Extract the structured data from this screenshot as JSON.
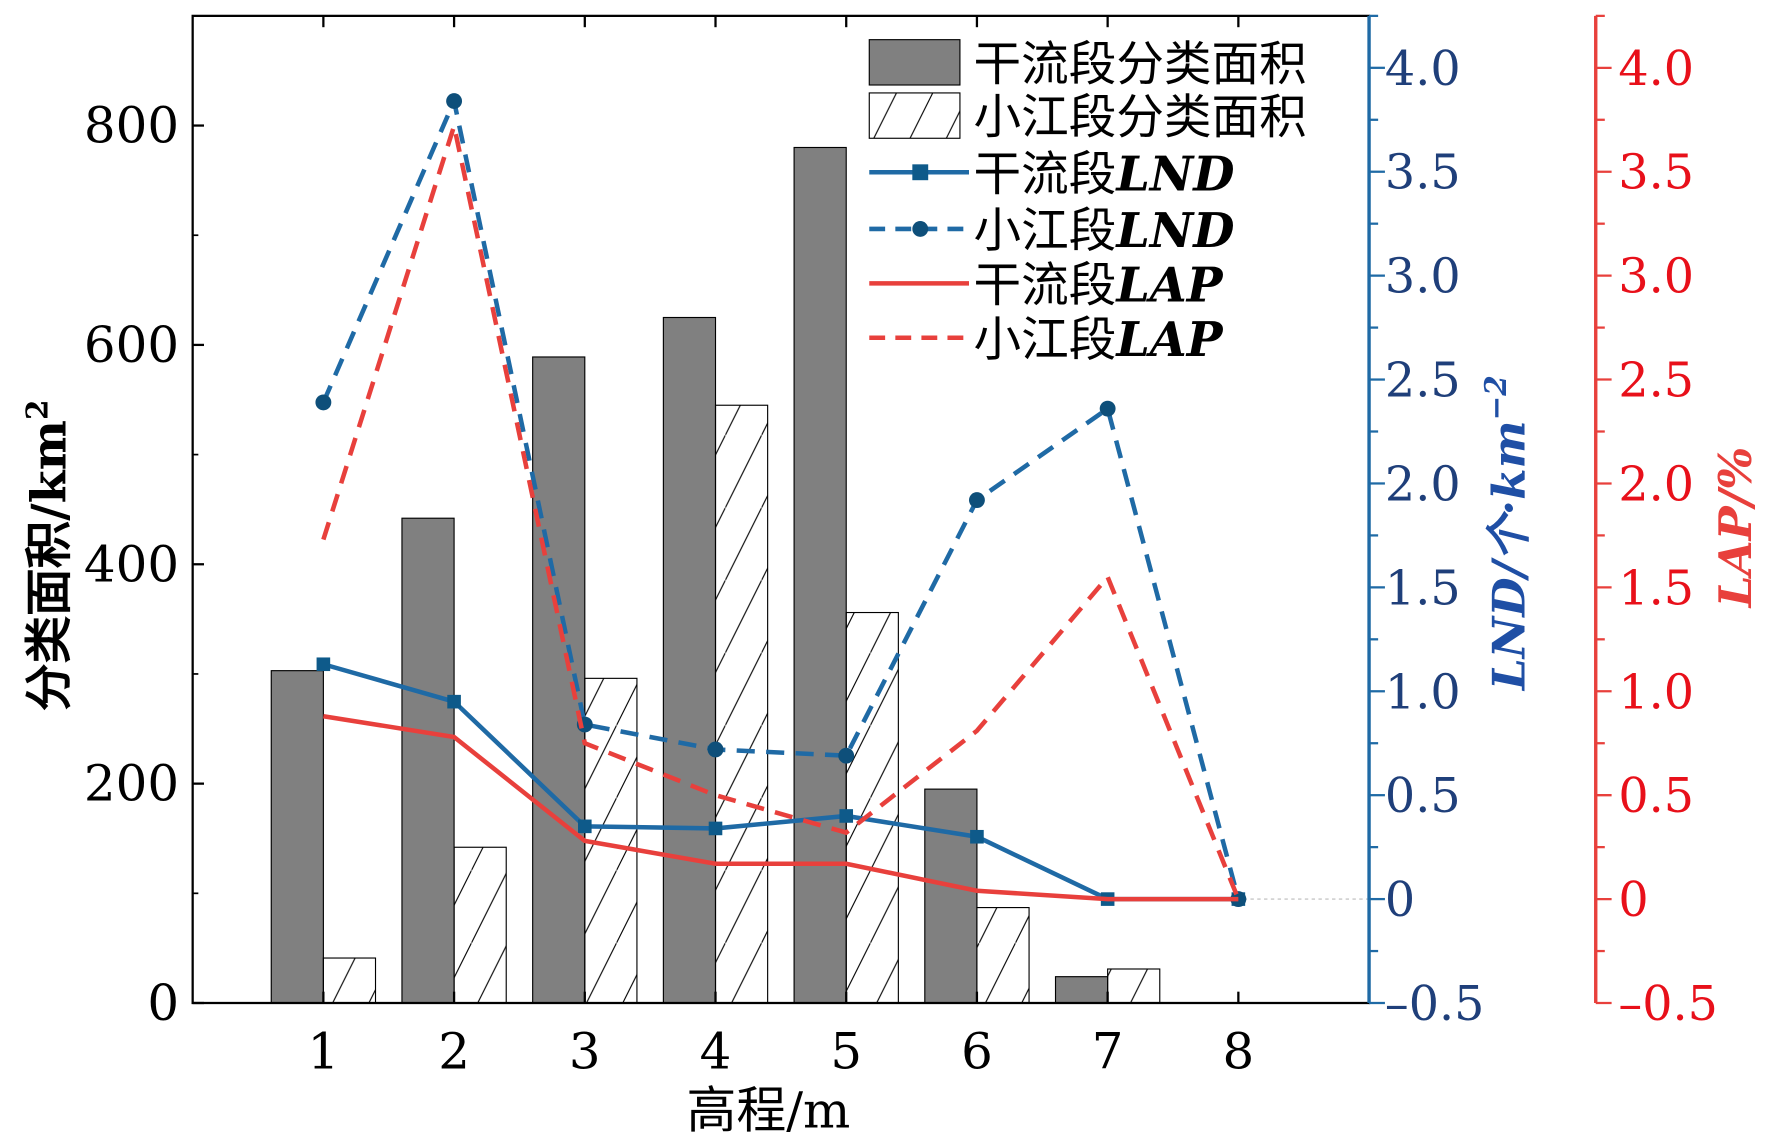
{
  "chart_data": {
    "type": "bar",
    "xlabel": "高程/m",
    "ylabel_left": "分类面积/km",
    "ylabel_left_sup": "2",
    "ylabel_right1": "LND/个·km",
    "ylabel_right1_sup": "−2",
    "ylabel_right2": "LAP/%",
    "categories": [
      "1",
      "2",
      "3",
      "4",
      "5",
      "6",
      "7",
      "8"
    ],
    "xlim": [
      0,
      9
    ],
    "ylim_left": [
      0,
      900
    ],
    "yticks_left": [
      "0",
      "200",
      "400",
      "600",
      "800"
    ],
    "ylim_right": [
      -0.5,
      4.25
    ],
    "yticks_right": [
      "-0.5",
      "0",
      "0.5",
      "1.0",
      "1.5",
      "2.0",
      "2.5",
      "3.0",
      "3.5",
      "4.0"
    ],
    "bar_series": [
      {
        "name": "干流段分类面积",
        "values": [
          303,
          442,
          589,
          625,
          780,
          195,
          24,
          0
        ],
        "color": "#808080"
      },
      {
        "name": "小江段分类面积",
        "values": [
          41,
          142,
          296,
          545,
          356,
          87,
          31,
          0
        ],
        "color": "#ffffff"
      }
    ],
    "line_series": [
      {
        "name": "干流段LND",
        "prefix": "干流段",
        "suffix": "LND",
        "values": [
          1.13,
          0.95,
          0.35,
          0.34,
          0.4,
          0.3,
          0,
          0
        ],
        "color": "#1f6aa5",
        "dashed": false,
        "marker": "square"
      },
      {
        "name": "小江段LND",
        "prefix": "小江段",
        "suffix": "LND",
        "values": [
          2.39,
          3.84,
          0.84,
          0.72,
          0.69,
          1.92,
          2.36,
          0
        ],
        "color": "#1f6aa5",
        "dashed": true,
        "marker": "circle"
      },
      {
        "name": "干流段LAP",
        "prefix": "干流段",
        "suffix": "LAP",
        "values": [
          0.88,
          0.78,
          0.28,
          0.17,
          0.17,
          0.04,
          0,
          0
        ],
        "color": "#e8403c",
        "dashed": false,
        "marker": "none"
      },
      {
        "name": "小江段LAP",
        "prefix": "小江段",
        "suffix": "LAP",
        "values": [
          1.73,
          3.72,
          0.75,
          0.5,
          0.32,
          0.81,
          1.55,
          0
        ],
        "color": "#e8403c",
        "dashed": true,
        "marker": "none"
      }
    ],
    "legend_position": "top-right",
    "axis_colors": {
      "left": "#000000",
      "lnd": "#1f6aa5",
      "lap": "#e8403c",
      "lnd_label": "#1f4fa5"
    }
  }
}
